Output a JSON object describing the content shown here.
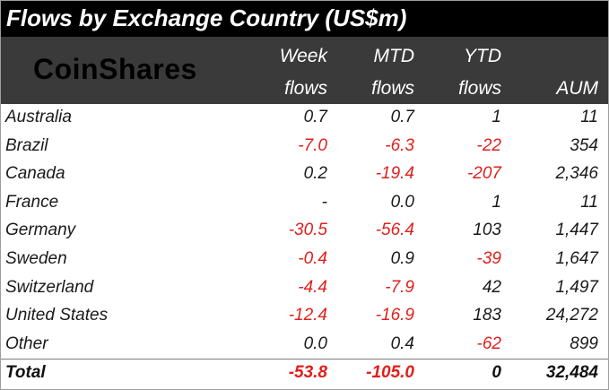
{
  "title": "Flows by Exchange Country (US$m)",
  "logo_text": "CoinShares",
  "columns": {
    "week": [
      "Week",
      "flows"
    ],
    "mtd": [
      "MTD",
      "flows"
    ],
    "ytd": [
      "YTD",
      "flows"
    ],
    "aum": "AUM"
  },
  "colors": {
    "negative": "#e0201c",
    "title_bg": "#000000",
    "header_bg": "#3a3a3a"
  },
  "rows": [
    {
      "name": "Australia",
      "week": "0.7",
      "mtd": "0.7",
      "ytd": "1",
      "aum": "11"
    },
    {
      "name": "Brazil",
      "week": "-7.0",
      "mtd": "-6.3",
      "ytd": "-22",
      "aum": "354"
    },
    {
      "name": "Canada",
      "week": "0.2",
      "mtd": "-19.4",
      "ytd": "-207",
      "aum": "2,346"
    },
    {
      "name": "France",
      "week": "-",
      "mtd": "0.0",
      "ytd": "1",
      "aum": "11"
    },
    {
      "name": "Germany",
      "week": "-30.5",
      "mtd": "-56.4",
      "ytd": "103",
      "aum": "1,447"
    },
    {
      "name": "Sweden",
      "week": "-0.4",
      "mtd": "0.9",
      "ytd": "-39",
      "aum": "1,647"
    },
    {
      "name": "Switzerland",
      "week": "-4.4",
      "mtd": "-7.9",
      "ytd": "42",
      "aum": "1,497"
    },
    {
      "name": "United States",
      "week": "-12.4",
      "mtd": "-16.9",
      "ytd": "183",
      "aum": "24,272"
    },
    {
      "name": "Other",
      "week": "0.0",
      "mtd": "0.4",
      "ytd": "-62",
      "aum": "899"
    }
  ],
  "total": {
    "name": "Total",
    "week": "-53.8",
    "mtd": "-105.0",
    "ytd": "0",
    "aum": "32,484"
  }
}
